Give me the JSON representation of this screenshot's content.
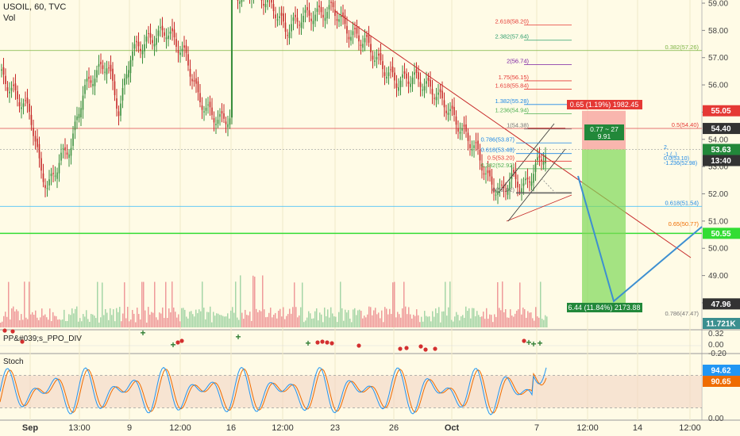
{
  "header": {
    "symbol": "USOIL, 60, TVC",
    "volume_label": "Vol"
  },
  "panes": {
    "ppo_title": "PP&#039;s_PPO_DIV",
    "stoch_title": "Stoch"
  },
  "price_axis": {
    "ticks": [
      "59.00",
      "58.00",
      "57.00",
      "56.00",
      "55.00",
      "54.00",
      "53.00",
      "52.00",
      "51.00",
      "50.00",
      "49.00",
      "48.00"
    ],
    "badges": [
      {
        "label": "55.05",
        "color": "#e53935",
        "text_color": "#ffffff"
      },
      {
        "label": "54.40",
        "color": "#333333",
        "text_color": "#ffffff"
      },
      {
        "label": "53.63",
        "color": "#22883a",
        "text_color": "#ffffff"
      },
      {
        "label": "13:40",
        "color": "#333333",
        "text_color": "#ffffff"
      },
      {
        "label": "50.55",
        "color": "#33dd33",
        "text_color": "#ffffff"
      },
      {
        "label": "47.96",
        "color": "#333333",
        "text_color": "#ffffff"
      },
      {
        "label": "11.721K",
        "color": "#3a8f8f",
        "text_color": "#ffffff"
      }
    ]
  },
  "ppo_axis": {
    "ticks": [
      "0.32",
      "0.00",
      "-0.20"
    ]
  },
  "stoch_axis": {
    "ticks": [
      "0.00"
    ],
    "badges": [
      {
        "label": "94.62",
        "color": "#2196f3",
        "text_color": "#ffffff"
      },
      {
        "label": "90.65",
        "color": "#ef6c00",
        "text_color": "#ffffff"
      }
    ]
  },
  "time_axis": {
    "labels": [
      "Sep",
      "13:00",
      "9",
      "12:00",
      "16",
      "12:00",
      "23",
      "26",
      "Oct",
      "7",
      "12:00",
      "14",
      "12:00"
    ]
  },
  "fib_upper": [
    {
      "label": "2.618(58.20)",
      "color": "#e53935"
    },
    {
      "label": "2.382(57.64)",
      "color": "#2e9e6e"
    },
    {
      "label": "2(56.74)",
      "color": "#7b1fa2"
    },
    {
      "label": "1.75(56.15)",
      "color": "#e53935"
    },
    {
      "label": "1.618(55.84)",
      "color": "#e53935"
    },
    {
      "label": "1.382(55.28)",
      "color": "#1e88e5"
    },
    {
      "label": "1.236(54.94)",
      "color": "#4caf50"
    },
    {
      "label": "1(54.38)",
      "color": "#777777"
    },
    {
      "label": "0.786(53.87)",
      "color": "#1e88e5"
    },
    {
      "label": "0.618(53.48)",
      "color": "#1e88e5"
    },
    {
      "label": "0.5(53.20)",
      "color": "#e53935"
    },
    {
      "label": "0.382(52.92)",
      "color": "#4caf50"
    },
    {
      "label": "0(52.02)",
      "color": "#777777"
    }
  ],
  "fib_right": [
    {
      "label": "0.382(57.26)",
      "color": "#7cb342"
    },
    {
      "label": "0.5(54.40)",
      "color": "#e53935"
    },
    {
      "label": "0.618(51.54)",
      "color": "#1e88e5"
    },
    {
      "label": "0.65(50.77)",
      "color": "#ef6c00"
    },
    {
      "label": "0.786(47.47)",
      "color": "#777777"
    }
  ],
  "fib_cluster": [
    "2.",
    "-1.(..)",
    "0.0(53.10)",
    "-1.236(52.98)"
  ],
  "position_tool": {
    "stop_label": "0.65 (1.19%) 1982.45",
    "ratio_label": "0.77 ~ 27",
    "ratio_value": "9.91",
    "target_label": "6.44 (11.84%) 2173.88"
  },
  "colors": {
    "background": "#fffbe6",
    "up": "#26a69a",
    "down": "#ef5350",
    "candle_body_up": "#388e3c",
    "candle_body_down": "#c62828",
    "stoch_k": "#2196f3",
    "stoch_d": "#ef6c00"
  },
  "chart_data": {
    "type": "candlestick",
    "symbol": "USOIL",
    "timeframe": "60",
    "y_range": [
      47.6,
      59.2
    ],
    "key_levels": {
      "resistance_red": 54.4,
      "support_green": 50.55,
      "stop": 55.05,
      "current": 53.63,
      "target": 47.96
    },
    "stoch": {
      "k": 94.62,
      "d": 90.65,
      "bands": [
        80,
        20
      ]
    }
  }
}
